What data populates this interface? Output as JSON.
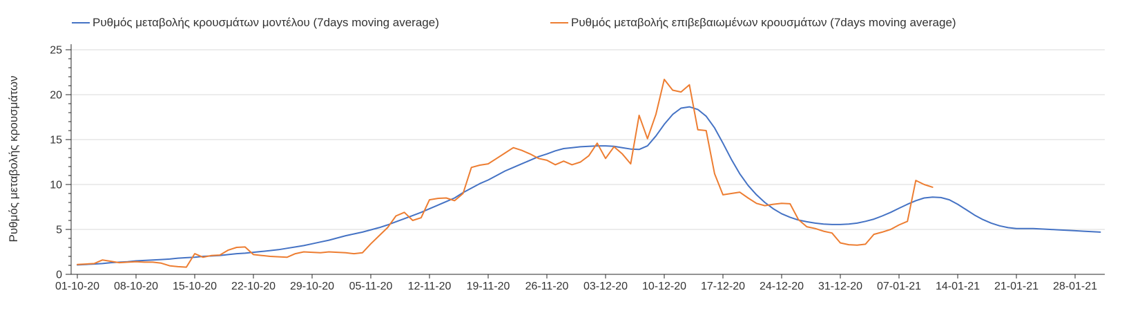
{
  "chart_data": {
    "type": "line",
    "title": "",
    "ylabel": "Ρυθμός μεταβολής κρουσμάτων",
    "ylim": [
      0,
      25
    ],
    "y_ticks": [
      0,
      5,
      10,
      15,
      20,
      25
    ],
    "y_minor_tick_step": 1,
    "grid": "horizontal",
    "legend_position": "top",
    "x_unit": "day",
    "x_tick_every_days": 7,
    "x_tick_labels": [
      "01-10-20",
      "08-10-20",
      "15-10-20",
      "22-10-20",
      "29-10-20",
      "05-11-20",
      "12-11-20",
      "19-11-20",
      "26-11-20",
      "03-12-20",
      "10-12-20",
      "17-12-20",
      "24-12-20",
      "31-12-20",
      "07-01-21",
      "14-01-21",
      "21-01-21",
      "28-01-21"
    ],
    "grid_color": "#D9D9D9",
    "axis_color": "#262626",
    "text_color": "#333333",
    "series": [
      {
        "name": "Ρυθμός μεταβολής κρουσμάτων μοντέλου (7days moving average)",
        "color": "#4472C4",
        "start_day": 0,
        "values": [
          1.05,
          1.1,
          1.15,
          1.2,
          1.3,
          1.35,
          1.4,
          1.5,
          1.55,
          1.6,
          1.65,
          1.7,
          1.8,
          1.85,
          1.9,
          2.0,
          2.05,
          2.1,
          2.2,
          2.3,
          2.35,
          2.45,
          2.55,
          2.65,
          2.75,
          2.9,
          3.05,
          3.2,
          3.4,
          3.6,
          3.8,
          4.05,
          4.3,
          4.5,
          4.7,
          4.95,
          5.2,
          5.5,
          5.85,
          6.2,
          6.55,
          6.9,
          7.3,
          7.7,
          8.1,
          8.5,
          9.1,
          9.6,
          10.1,
          10.5,
          11.0,
          11.5,
          11.9,
          12.3,
          12.7,
          13.1,
          13.4,
          13.75,
          14.0,
          14.1,
          14.2,
          14.25,
          14.3,
          14.3,
          14.25,
          14.1,
          13.95,
          13.9,
          14.3,
          15.4,
          16.7,
          17.8,
          18.5,
          18.65,
          18.35,
          17.6,
          16.3,
          14.6,
          12.8,
          11.2,
          9.9,
          8.85,
          8.0,
          7.3,
          6.75,
          6.35,
          6.05,
          5.85,
          5.7,
          5.6,
          5.55,
          5.55,
          5.6,
          5.7,
          5.9,
          6.15,
          6.5,
          6.9,
          7.35,
          7.8,
          8.2,
          8.5,
          8.6,
          8.55,
          8.3,
          7.8,
          7.2,
          6.6,
          6.1,
          5.7,
          5.4,
          5.2,
          5.1,
          5.1,
          5.1,
          5.05,
          5.0,
          4.95,
          4.9,
          4.85,
          4.8,
          4.75,
          4.7
        ]
      },
      {
        "name": "Ρυθμός μεταβολής επιβεβαιωμένων κρουσμάτων (7days moving average)",
        "color": "#ED7D31",
        "start_day": 0,
        "values": [
          1.1,
          1.15,
          1.2,
          1.6,
          1.45,
          1.3,
          1.35,
          1.4,
          1.35,
          1.35,
          1.25,
          0.95,
          0.85,
          0.8,
          2.3,
          1.9,
          2.1,
          2.15,
          2.7,
          3.0,
          3.05,
          2.2,
          2.1,
          2.0,
          1.95,
          1.9,
          2.3,
          2.5,
          2.45,
          2.4,
          2.5,
          2.45,
          2.4,
          2.3,
          2.4,
          3.4,
          4.3,
          5.2,
          6.5,
          6.9,
          6.0,
          6.3,
          8.3,
          8.45,
          8.5,
          8.2,
          9.0,
          11.9,
          12.15,
          12.3,
          12.9,
          13.5,
          14.1,
          13.8,
          13.4,
          12.9,
          12.7,
          12.2,
          12.6,
          12.2,
          12.5,
          13.2,
          14.6,
          12.9,
          14.2,
          13.4,
          12.3,
          17.7,
          15.1,
          17.8,
          21.7,
          20.5,
          20.3,
          21.1,
          16.1,
          16.0,
          11.2,
          8.85,
          9.0,
          9.15,
          8.5,
          7.9,
          7.65,
          7.8,
          7.9,
          7.85,
          6.1,
          5.3,
          5.1,
          4.8,
          4.6,
          3.5,
          3.3,
          3.25,
          3.35,
          4.45,
          4.7,
          5.0,
          5.5,
          5.9,
          10.45,
          10.0,
          9.7
        ]
      }
    ]
  }
}
